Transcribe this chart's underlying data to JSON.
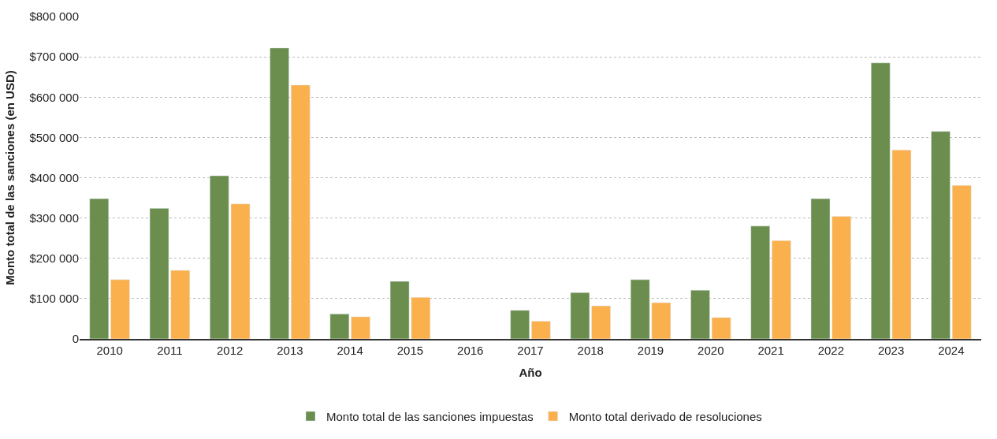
{
  "chart_data": {
    "type": "bar",
    "xlabel": "Año",
    "ylabel": "Monto total de las sanciones (en USD)",
    "categories": [
      "2010",
      "2011",
      "2012",
      "2013",
      "2014",
      "2015",
      "2016",
      "2017",
      "2018",
      "2019",
      "2020",
      "2021",
      "2022",
      "2023",
      "2024"
    ],
    "series": [
      {
        "name": "Monto total de las sanciones impuestas",
        "color": "#6b8e4e",
        "values": [
          348000,
          324000,
          405000,
          722000,
          62000,
          143000,
          null,
          71000,
          115000,
          147000,
          121000,
          280000,
          348000,
          685000,
          515000
        ]
      },
      {
        "name": "Monto total derivado de resoluciones",
        "color": "#fbb04e",
        "values": [
          147000,
          170000,
          335000,
          630000,
          55000,
          103000,
          null,
          44000,
          82000,
          90000,
          53000,
          244000,
          304000,
          469000,
          381000
        ]
      }
    ],
    "ylim": [
      0,
      800000
    ],
    "yticks": [
      0,
      {
        "value": 100000,
        "label": "$100 000"
      },
      {
        "value": 200000,
        "label": "$200 000"
      },
      {
        "value": 300000,
        "label": "$300 000"
      },
      {
        "value": 400000,
        "label": "$400 000"
      },
      {
        "value": 500000,
        "label": "$500 000"
      },
      {
        "value": 600000,
        "label": "$600 000"
      },
      {
        "value": 700000,
        "label": "$700 000"
      },
      {
        "value": 800000,
        "label": "$800 000"
      }
    ],
    "grid": "y",
    "legend": "bottom"
  }
}
